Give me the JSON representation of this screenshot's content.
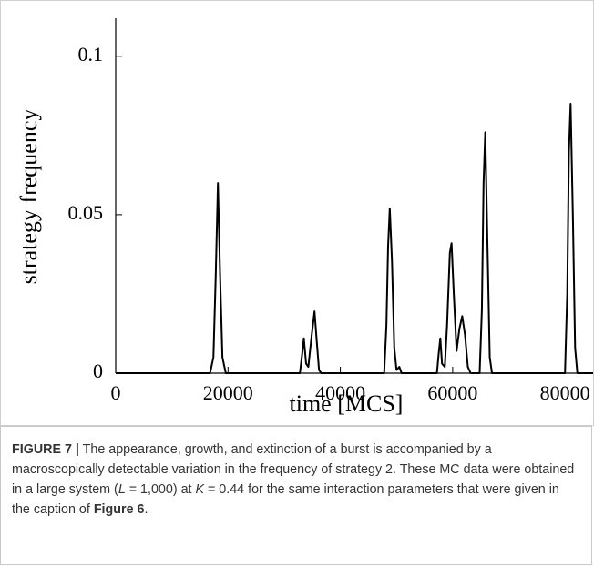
{
  "chart_data": {
    "type": "line",
    "x_label": "time [MCS]",
    "y_label": "strategy frequency",
    "xlim": [
      0,
      85000
    ],
    "ylim": [
      0,
      0.112
    ],
    "xticks": [
      0,
      20000,
      40000,
      60000,
      80000
    ],
    "yticks": [
      0,
      0.05,
      0.1
    ],
    "series": [
      {
        "color": "#000000",
        "x": [
          0,
          16800,
          17400,
          17800,
          18200,
          18600,
          19000,
          19600,
          32800,
          33200,
          33500,
          33900,
          34300,
          34900,
          35400,
          35800,
          36200,
          36600,
          47800,
          48200,
          48500,
          48800,
          49200,
          49600,
          50000,
          50500,
          50900,
          57200,
          57500,
          57800,
          58100,
          58600,
          59000,
          59500,
          59800,
          60200,
          60700,
          61200,
          61700,
          62200,
          62700,
          63200,
          64800,
          65200,
          65500,
          65800,
          66200,
          66600,
          67000,
          80000,
          80400,
          80700,
          81000,
          81400,
          81800,
          82200,
          85000
        ],
        "values": [
          0,
          0,
          0.005,
          0.03,
          0.06,
          0.03,
          0.005,
          0,
          0,
          0.006,
          0.011,
          0.003,
          0.002,
          0.012,
          0.0195,
          0.01,
          0.001,
          0,
          0,
          0.015,
          0.04,
          0.052,
          0.035,
          0.008,
          0.001,
          0.002,
          0,
          0,
          0.006,
          0.011,
          0.003,
          0.002,
          0.015,
          0.038,
          0.041,
          0.025,
          0.007,
          0.014,
          0.018,
          0.012,
          0.002,
          0,
          0,
          0.02,
          0.06,
          0.076,
          0.04,
          0.005,
          0,
          0,
          0.025,
          0.07,
          0.085,
          0.05,
          0.008,
          0,
          0
        ]
      }
    ]
  },
  "caption": {
    "label": "FIGURE 7 |",
    "text_1": "The appearance, growth, and extinction of a burst is accompanied by a macroscopically detectable variation in the frequency of strategy 2. These MC data were obtained in a large system (",
    "var_L": "L",
    "text_2": " = 1,000) at ",
    "var_K": "K",
    "text_3": " = 0.44 for the same interaction parameters that were given in the caption of ",
    "ref": "Figure 6",
    "end": "."
  }
}
